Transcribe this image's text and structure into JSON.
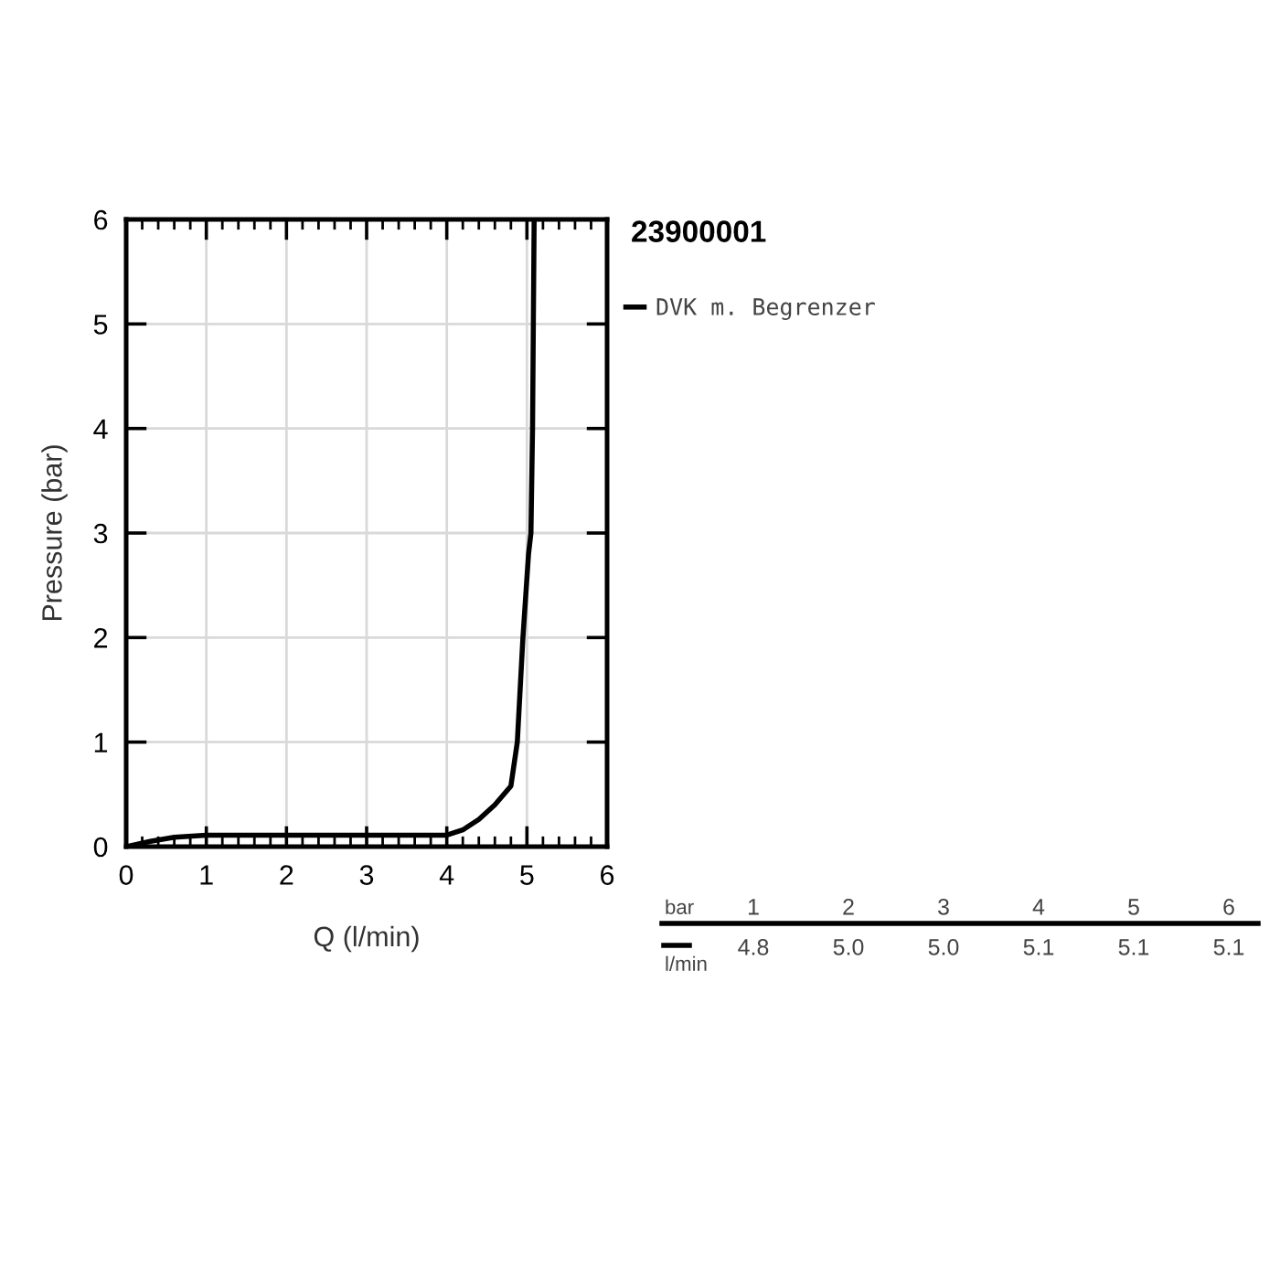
{
  "chart_data": {
    "type": "line",
    "title": "23900001",
    "xlabel": "Q (l/min)",
    "ylabel": "Pressure (bar)",
    "series": [
      {
        "name": "DVK m. Begrenzer",
        "color": "#000000",
        "x": [
          0,
          0.3,
          0.6,
          1,
          2,
          3,
          4,
          4.2,
          4.4,
          4.6,
          4.8,
          4.88,
          4.95,
          5.02,
          5.05,
          5.07,
          5.08,
          5.09
        ],
        "values": [
          0,
          0.05,
          0.09,
          0.11,
          0.11,
          0.11,
          0.11,
          0.16,
          0.26,
          0.4,
          0.58,
          1.0,
          2.0,
          2.8,
          3.0,
          4.0,
          5.0,
          6.0
        ]
      }
    ],
    "xlim": [
      0,
      6
    ],
    "ylim": [
      0,
      6
    ],
    "xticks": [
      0,
      1,
      2,
      3,
      4,
      5,
      6
    ],
    "yticks": [
      0,
      1,
      2,
      3,
      4,
      5,
      6
    ],
    "grid": true,
    "legend": "right",
    "marker": "none",
    "line_style": "solid",
    "annotations": [
      "bar",
      "1",
      "2",
      "3",
      "4",
      "5",
      "6",
      "l/min",
      "4.8",
      "5.0",
      "5.0",
      "5.1",
      "5.1",
      "5.1"
    ]
  }
}
